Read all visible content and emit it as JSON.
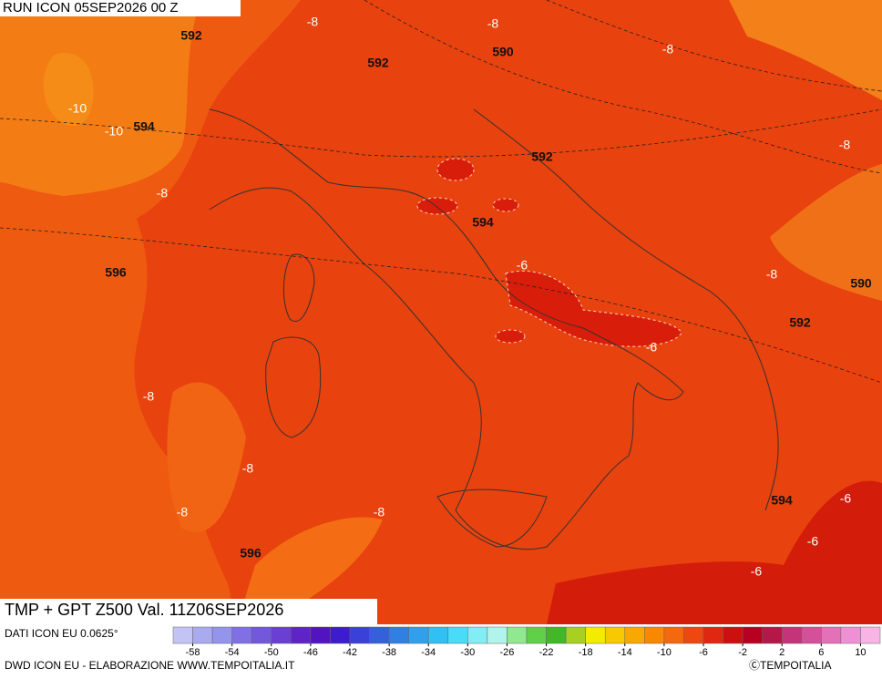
{
  "header": {
    "run": "RUN ICON 05SEP2026 00 Z"
  },
  "map": {
    "title": "TMP + GPT Z500 Val. 11Z06SEP2026",
    "contour_labels": [
      "592",
      "-8",
      "-8",
      "592",
      "590",
      "-8",
      "-10",
      "-10",
      "594",
      "592",
      "-8",
      "-8",
      "594",
      "-6",
      "596",
      "-8",
      "590",
      "592",
      "-6",
      "-8",
      "-8",
      "-8",
      "-8",
      "596",
      "594",
      "-6",
      "-6",
      "-6"
    ]
  },
  "footer": {
    "source": "DATI ICON EU 0.0625°",
    "credit": "DWD ICON EU - ELABORAZIONE WWW.TEMPOITALIA.IT",
    "copyright": "ⒸTEMPOITALIA"
  },
  "colorbar": {
    "range": [
      -60,
      12
    ],
    "ticks": [
      -58,
      -54,
      -50,
      -46,
      -42,
      -38,
      -34,
      -30,
      -26,
      -22,
      -18,
      -14,
      -10,
      -6,
      -2,
      2,
      6,
      10
    ],
    "colors": [
      "#c4c4f4",
      "#aaaaf0",
      "#9494ec",
      "#8070e4",
      "#7458dc",
      "#6a40d4",
      "#5e24c8",
      "#5214c0",
      "#3c1ccc",
      "#3a40d8",
      "#3460dc",
      "#3080e4",
      "#30a0ec",
      "#30c0f4",
      "#48dcf8",
      "#80eef4",
      "#b0f4ec",
      "#90e890",
      "#60d048",
      "#40b828",
      "#a8d020",
      "#f4ec00",
      "#f8c800",
      "#f8a800",
      "#f88800",
      "#f46810",
      "#ec4810",
      "#e02810",
      "#cc1010",
      "#b80020",
      "#b41848",
      "#c43478",
      "#d45098",
      "#e470b8",
      "#f090d4",
      "#f8b4e4"
    ]
  }
}
